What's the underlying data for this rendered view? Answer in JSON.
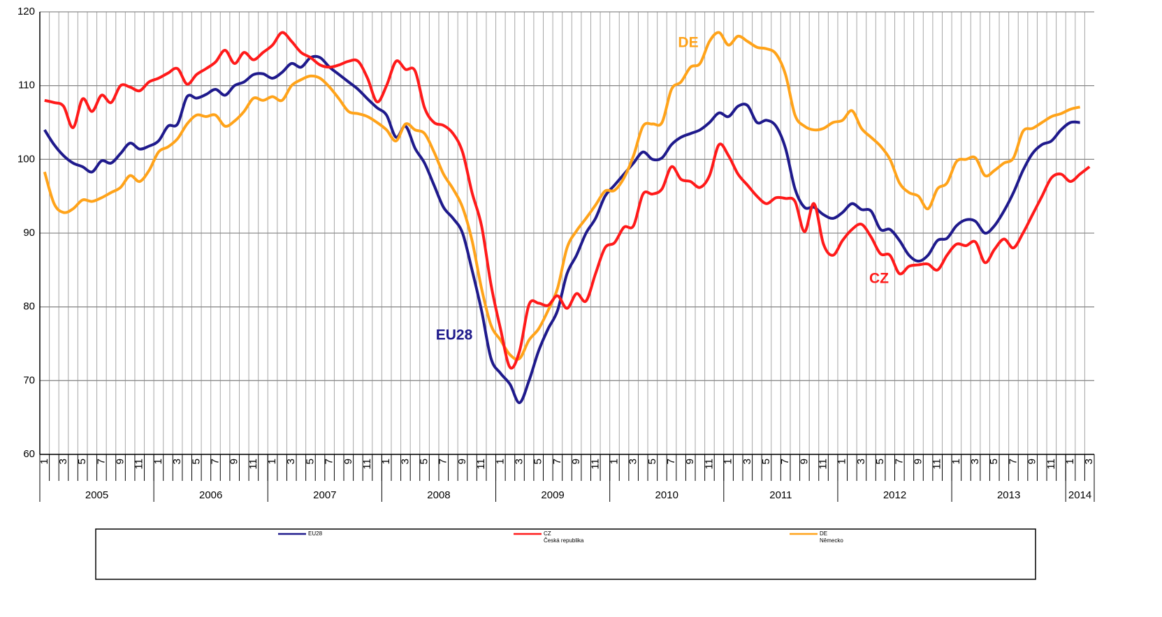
{
  "chart_data": {
    "type": "line",
    "categories": [
      "1",
      null,
      "3",
      null,
      "5",
      null,
      "7",
      null,
      "9",
      null,
      "11",
      null,
      "1",
      null,
      "3",
      null,
      "5",
      null,
      "7",
      null,
      "9",
      null,
      "11",
      null,
      "1",
      null,
      "3",
      null,
      "5",
      null,
      "7",
      null,
      "9",
      null,
      "11",
      null,
      "1",
      null,
      "3",
      null,
      "5",
      null,
      "7",
      null,
      "9",
      null,
      "11",
      null,
      "1",
      null,
      "3",
      null,
      "5",
      null,
      "7",
      null,
      "9",
      null,
      "11",
      null,
      "1",
      null,
      "3",
      null,
      "5",
      null,
      "7",
      null,
      "9",
      null,
      "11",
      null,
      "1",
      null,
      "3",
      null,
      "5",
      null,
      "7",
      null,
      "9",
      null,
      "11",
      null,
      "1",
      null,
      "3",
      null,
      "5",
      null,
      "7",
      null,
      "9",
      null,
      "11",
      null,
      "1",
      null,
      "3",
      null,
      "5",
      null,
      "7",
      null,
      "9",
      null,
      "11",
      null,
      "1",
      null,
      "3"
    ],
    "x_groups": [
      "2005",
      "2006",
      "2007",
      "2008",
      "2009",
      "2010",
      "2011",
      "2012",
      "2013",
      "2014"
    ],
    "ylim": [
      60,
      120
    ],
    "yticks": [
      60,
      70,
      80,
      90,
      100,
      110,
      120
    ],
    "grid": true,
    "series": [
      {
        "name": "EU28",
        "color": "#1f1a8c",
        "values": [
          104,
          102,
          100.5,
          99.5,
          99,
          98.3,
          99.8,
          99.5,
          100.8,
          102.2,
          101.4,
          101.8,
          102.5,
          104.5,
          104.8,
          108.5,
          108.3,
          108.8,
          109.5,
          108.7,
          110,
          110.5,
          111.5,
          111.6,
          111,
          111.8,
          113,
          112.5,
          113.8,
          113.8,
          112.5,
          111.5,
          110.5,
          109.5,
          108.2,
          107,
          106,
          103,
          104.5,
          101.5,
          99.5,
          96.5,
          93.5,
          92,
          90,
          85,
          79.5,
          73,
          71,
          69.5,
          67,
          70,
          74,
          77,
          79.5,
          84.5,
          87,
          90,
          92,
          95,
          96.5,
          98,
          99.5,
          101,
          100,
          100.2,
          102,
          103,
          103.5,
          104,
          105,
          106.3,
          105.8,
          107.2,
          107.3,
          105,
          105.3,
          104.5,
          101.5,
          96,
          93.5,
          93.5,
          92.5,
          92,
          92.8,
          94,
          93.2,
          93,
          90.5,
          90.5,
          89,
          87,
          86.2,
          87,
          89,
          89.3,
          91,
          91.8,
          91.6,
          90,
          91,
          93,
          95.5,
          98.5,
          100.8,
          102,
          102.5,
          104,
          105,
          105,
          null
        ]
      },
      {
        "name": "CZ",
        "description": "Česká republika",
        "color": "#ff1a1a",
        "values": [
          108,
          107.7,
          107.2,
          104.3,
          108.2,
          106.5,
          108.7,
          107.7,
          110,
          109.8,
          109.3,
          110.5,
          111,
          111.7,
          112.3,
          110.2,
          111.5,
          112.3,
          113.2,
          114.8,
          113,
          114.5,
          113.5,
          114.5,
          115.5,
          117.2,
          116,
          114.5,
          113.8,
          112.8,
          112.5,
          112.8,
          113.3,
          113.3,
          111,
          107.8,
          110,
          113.3,
          112.2,
          112,
          107,
          105,
          104.6,
          103.5,
          101,
          95.5,
          91,
          83,
          77,
          71.8,
          74,
          80.3,
          80.5,
          80.2,
          81.5,
          79.8,
          81.8,
          80.8,
          84.5,
          88,
          88.7,
          90.8,
          91,
          95.3,
          95.3,
          96,
          99,
          97.3,
          97,
          96.2,
          97.8,
          102,
          100.5,
          98,
          96.5,
          95,
          94,
          94.8,
          94.7,
          94.3,
          90.2,
          94,
          88.5,
          87,
          89,
          90.5,
          91.2,
          89.5,
          87.2,
          87,
          84.5,
          85.5,
          85.7,
          85.8,
          85,
          87,
          88.5,
          88.3,
          88.8,
          86,
          87.8,
          89.2,
          88,
          90,
          92.5,
          95,
          97.5,
          98,
          97,
          98,
          99
        ]
      },
      {
        "name": "DE",
        "description": "Německo",
        "color": "#ffa31a",
        "values": [
          98.3,
          94,
          92.8,
          93.3,
          94.5,
          94.3,
          94.8,
          95.5,
          96.2,
          97.8,
          97,
          98.5,
          101,
          101.7,
          102.8,
          104.8,
          106,
          105.8,
          106,
          104.5,
          105.2,
          106.5,
          108.3,
          108,
          108.5,
          108,
          110,
          110.8,
          111.3,
          111,
          109.8,
          108.2,
          106.5,
          106.2,
          105.8,
          105,
          104,
          102.5,
          104.8,
          104,
          103.5,
          101,
          98,
          96,
          93.5,
          89,
          82.5,
          77.5,
          75.5,
          73.5,
          73,
          75.5,
          77,
          79.5,
          82.5,
          88,
          90.3,
          92,
          93.8,
          95.7,
          95.8,
          97.5,
          100.5,
          104.5,
          104.8,
          105,
          109.5,
          110.5,
          112.5,
          113,
          116,
          117.2,
          115.5,
          116.7,
          116,
          115.2,
          115,
          114.3,
          111.5,
          106,
          104.5,
          104,
          104.2,
          105,
          105.3,
          106.6,
          104.2,
          103,
          101.8,
          100,
          96.8,
          95.5,
          95,
          93.3,
          96,
          96.8,
          99.7,
          100,
          100.2,
          97.8,
          98.5,
          99.5,
          100.2,
          103.8,
          104.2,
          105,
          105.8,
          106.2,
          106.8,
          107.1,
          null
        ]
      }
    ],
    "annotations": [
      {
        "text": "DE",
        "color": "#ffa31a"
      },
      {
        "text": "CZ",
        "color": "#ff1a1a"
      },
      {
        "text": "EU28",
        "color": "#1f1a8c"
      }
    ]
  }
}
